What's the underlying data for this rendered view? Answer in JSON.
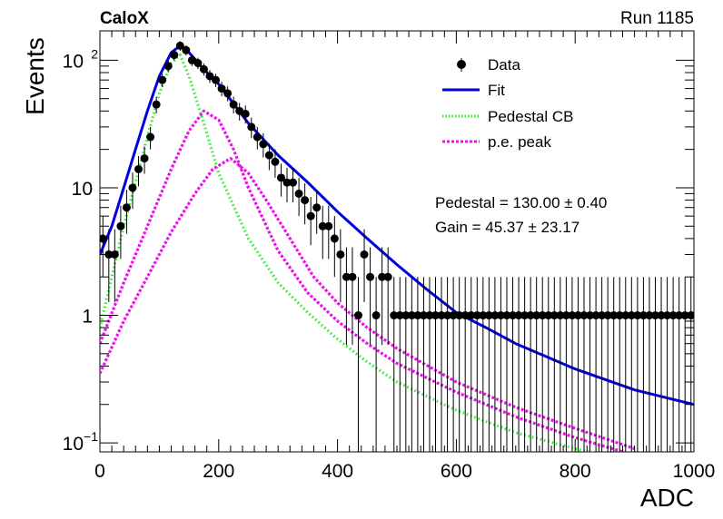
{
  "header": {
    "left": "CaloX",
    "right": "Run 1185"
  },
  "legend": [
    {
      "label": "Data",
      "kind": "marker",
      "color": "#000000"
    },
    {
      "label": "Fit",
      "kind": "solid",
      "color": "#0000dd"
    },
    {
      "label": "Pedestal CB",
      "kind": "dotted",
      "color": "#22ee22"
    },
    {
      "label": "p.e. peak",
      "kind": "dotted",
      "color": "#ee11ee"
    }
  ],
  "stats": [
    "Pedestal = 130.00 ± 0.40",
    "Gain = 45.37 ± 23.17"
  ],
  "chart_data": {
    "type": "scatter",
    "xlabel": "ADC",
    "ylabel": "Events",
    "xlim": [
      0,
      1000
    ],
    "ylim": [
      0.085,
      170
    ],
    "yscale": "log",
    "x_ticks": [
      0,
      200,
      400,
      600,
      800,
      1000
    ],
    "y_ticks": [
      {
        "value": 0.1,
        "label": "10",
        "exp": "−1"
      },
      {
        "value": 1,
        "label": "1",
        "exp": ""
      },
      {
        "value": 10,
        "label": "10",
        "exp": ""
      },
      {
        "value": 100,
        "label": "10",
        "exp": "2"
      }
    ],
    "legend_position": "top-right",
    "series": [
      {
        "name": "Data",
        "kind": "points",
        "color": "#000000",
        "x": [
          5,
          15,
          25,
          35,
          45,
          55,
          65,
          75,
          85,
          95,
          105,
          115,
          125,
          135,
          145,
          155,
          165,
          175,
          185,
          195,
          205,
          215,
          225,
          235,
          245,
          255,
          265,
          275,
          285,
          295,
          305,
          315,
          325,
          335,
          345,
          355,
          365,
          375,
          385,
          395,
          405,
          415,
          425,
          435,
          445,
          455,
          465,
          475,
          485,
          495,
          505,
          515,
          525,
          535,
          545,
          555,
          565,
          575,
          585,
          595,
          605,
          615,
          625,
          635,
          645,
          655,
          665,
          675,
          685,
          695,
          705,
          715,
          725,
          735,
          745,
          755,
          765,
          775,
          785,
          795,
          805,
          815,
          825,
          835,
          845,
          855,
          865,
          875,
          885,
          895,
          905,
          915,
          925,
          935,
          945,
          955,
          965,
          975,
          985,
          995
        ],
        "y": [
          4,
          3,
          3,
          5,
          7,
          10,
          14,
          17,
          25,
          45,
          70,
          90,
          110,
          130,
          120,
          100,
          95,
          85,
          75,
          70,
          60,
          55,
          45,
          40,
          38,
          30,
          25,
          22,
          18,
          16,
          12,
          11,
          11,
          9,
          8,
          6,
          7,
          5,
          5,
          4,
          3,
          2,
          2,
          1,
          3,
          2,
          1,
          2,
          2,
          1,
          1,
          1,
          1,
          1,
          1,
          1,
          1,
          1,
          1,
          1,
          1,
          1,
          1,
          1,
          1,
          1,
          1,
          1,
          1,
          1,
          1,
          1,
          1,
          1,
          1,
          1,
          1,
          1,
          1,
          1,
          1,
          1,
          1,
          1,
          1,
          1,
          1,
          1,
          1,
          1,
          1,
          1,
          1,
          1,
          1,
          1,
          1,
          1,
          1,
          1
        ]
      },
      {
        "name": "Fit",
        "kind": "solid",
        "color": "#0000dd",
        "x": [
          0,
          20,
          40,
          60,
          80,
          100,
          120,
          135,
          150,
          175,
          200,
          250,
          300,
          350,
          400,
          450,
          500,
          550,
          600,
          650,
          700,
          800,
          900,
          1000
        ],
        "y": [
          3.0,
          5.0,
          10,
          20,
          40,
          75,
          115,
          130,
          115,
          85,
          65,
          32,
          18,
          11,
          6.5,
          4.0,
          2.5,
          1.6,
          1.05,
          0.8,
          0.6,
          0.38,
          0.26,
          0.2
        ]
      },
      {
        "name": "Pedestal CB",
        "kind": "dotted",
        "color": "#22ee22",
        "x": [
          0,
          20,
          40,
          60,
          80,
          100,
          120,
          135,
          150,
          175,
          200,
          250,
          300,
          350,
          400,
          450,
          500,
          600,
          700,
          800,
          900
        ],
        "y": [
          0.8,
          2.0,
          5,
          11,
          25,
          55,
          95,
          110,
          75,
          32,
          13,
          4,
          1.8,
          1.05,
          0.65,
          0.43,
          0.3,
          0.18,
          0.12,
          0.09,
          0.07
        ]
      },
      {
        "name": "p.e. peak (1)",
        "kind": "dotted",
        "color": "#ee11ee",
        "x": [
          0,
          40,
          80,
          120,
          150,
          175,
          200,
          225,
          250,
          300,
          350,
          400,
          450,
          500,
          600,
          700,
          800,
          900
        ],
        "y": [
          0.6,
          1.8,
          5,
          14,
          28,
          40,
          34,
          20,
          10,
          3.2,
          1.5,
          0.9,
          0.6,
          0.42,
          0.25,
          0.16,
          0.11,
          0.08
        ]
      },
      {
        "name": "p.e. peak (2)",
        "kind": "dotted",
        "color": "#ee11ee",
        "x": [
          0,
          40,
          80,
          120,
          160,
          190,
          220,
          250,
          280,
          320,
          360,
          400,
          450,
          500,
          600,
          700,
          800,
          900
        ],
        "y": [
          0.35,
          0.9,
          2,
          4.5,
          9,
          14,
          17,
          13,
          8,
          4,
          2,
          1.25,
          0.8,
          0.55,
          0.3,
          0.19,
          0.13,
          0.09
        ]
      }
    ]
  }
}
